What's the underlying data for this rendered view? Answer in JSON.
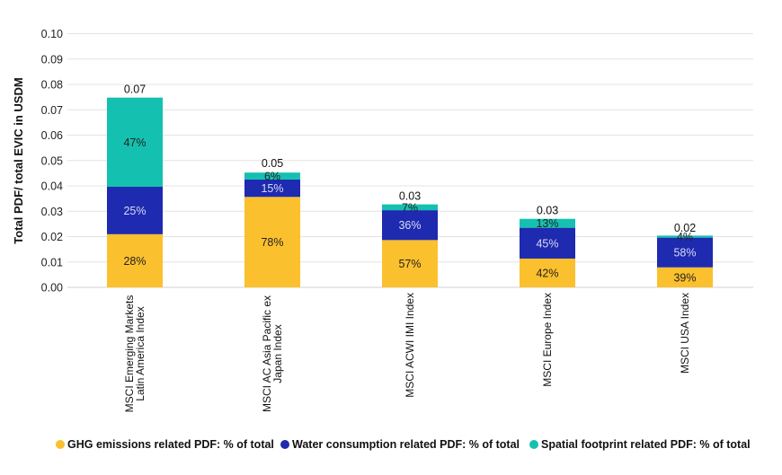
{
  "chart_data": {
    "type": "bar",
    "stacked": true,
    "title": "",
    "xlabel": "",
    "ylabel": "Total PDF/ total EVIC in USDM",
    "ylim": [
      0,
      0.1
    ],
    "yticks": [
      "0.00",
      "0.01",
      "0.02",
      "0.03",
      "0.04",
      "0.05",
      "0.06",
      "0.07",
      "0.08",
      "0.09",
      "0.10"
    ],
    "grid": true,
    "legend_position": "bottom",
    "categories": [
      [
        "MSCI Emerging Markets",
        "Latin America Index"
      ],
      [
        "MSCI AC Asia Pacific ex",
        "Japan Index"
      ],
      [
        "MSCI ACWI IMI Index"
      ],
      [
        "MSCI Europe Index"
      ],
      [
        "MSCI USA Index"
      ]
    ],
    "totals": [
      0.0748,
      0.0457,
      0.0327,
      0.027,
      0.0202
    ],
    "total_labels": [
      "0.07",
      "0.05",
      "0.03",
      "0.03",
      "0.02"
    ],
    "series": [
      {
        "name": "GHG emissions related PDF: % of total",
        "color": "#FBC02D",
        "label_color": "#222222",
        "percent": [
          28,
          78,
          57,
          42,
          39
        ]
      },
      {
        "name": "Water consumption related PDF: % of total",
        "color": "#1E2AAF",
        "label_color": "#D8DCF5",
        "percent": [
          25,
          15,
          36,
          45,
          58
        ]
      },
      {
        "name": "Spatial footprint related PDF: % of total",
        "color": "#14C1B0",
        "label_color": "#222222",
        "percent": [
          47,
          6,
          7,
          13,
          4
        ]
      }
    ]
  }
}
